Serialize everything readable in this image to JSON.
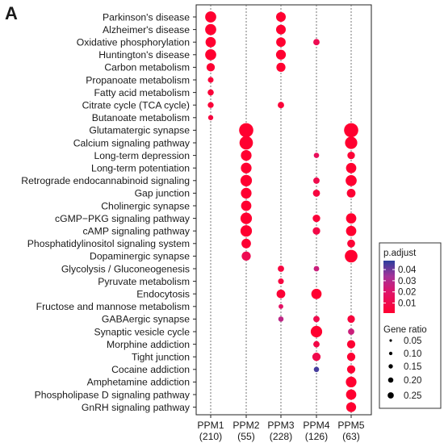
{
  "panel_label": "A",
  "chart_data": {
    "type": "dotplot",
    "groups": [
      "PPM1",
      "PPM2",
      "PPM3",
      "PPM4",
      "PPM5"
    ],
    "group_counts": [
      "(210)",
      "(55)",
      "(228)",
      "(126)",
      "(63)"
    ],
    "terms": [
      "Parkinson's disease",
      "Alzheimer's disease",
      "Oxidative phosphorylation",
      "Huntington's disease",
      "Carbon metabolism",
      "Propanoate metabolism",
      "Fatty acid metabolism",
      "Citrate cycle (TCA cycle)",
      "Butanoate metabolism",
      "Glutamatergic synapse",
      "Calcium signaling pathway",
      "Long-term depression",
      "Long-term potentiation",
      "Retrograde endocannabinoid signaling",
      "Gap junction",
      "Cholinergic synapse",
      "cGMP−PKG signaling pathway",
      "cAMP signaling pathway",
      "Phosphatidylinositol signaling system",
      "Dopaminergic synapse",
      "Glycolysis / Gluconeogenesis",
      "Pyruvate metabolism",
      "Endocytosis",
      "Fructose and mannose metabolism",
      "GABAergic synapse",
      "Synaptic vesicle cycle",
      "Morphine addiction",
      "Tight junction",
      "Cocaine addiction",
      "Amphetamine addiction",
      "Phospholipase D signaling pathway",
      "GnRH signaling pathway"
    ],
    "points": [
      {
        "term": "Parkinson's disease",
        "group": "PPM1",
        "gene_ratio": 0.19,
        "p_adjust": 0.001
      },
      {
        "term": "Parkinson's disease",
        "group": "PPM3",
        "gene_ratio": 0.155,
        "p_adjust": 0.001
      },
      {
        "term": "Alzheimer's disease",
        "group": "PPM1",
        "gene_ratio": 0.19,
        "p_adjust": 0.001
      },
      {
        "term": "Alzheimer's disease",
        "group": "PPM3",
        "gene_ratio": 0.155,
        "p_adjust": 0.001
      },
      {
        "term": "Oxidative phosphorylation",
        "group": "PPM1",
        "gene_ratio": 0.17,
        "p_adjust": 0.001
      },
      {
        "term": "Oxidative phosphorylation",
        "group": "PPM3",
        "gene_ratio": 0.15,
        "p_adjust": 0.001
      },
      {
        "term": "Oxidative phosphorylation",
        "group": "PPM4",
        "gene_ratio": 0.07,
        "p_adjust": 0.012
      },
      {
        "term": "Huntington's disease",
        "group": "PPM1",
        "gene_ratio": 0.19,
        "p_adjust": 0.001
      },
      {
        "term": "Huntington's disease",
        "group": "PPM3",
        "gene_ratio": 0.16,
        "p_adjust": 0.001
      },
      {
        "term": "Carbon metabolism",
        "group": "PPM1",
        "gene_ratio": 0.12,
        "p_adjust": 0.002
      },
      {
        "term": "Carbon metabolism",
        "group": "PPM3",
        "gene_ratio": 0.14,
        "p_adjust": 0.001
      },
      {
        "term": "Propanoate metabolism",
        "group": "PPM1",
        "gene_ratio": 0.055,
        "p_adjust": 0.004
      },
      {
        "term": "Fatty acid metabolism",
        "group": "PPM1",
        "gene_ratio": 0.065,
        "p_adjust": 0.004
      },
      {
        "term": "Citrate cycle (TCA cycle)",
        "group": "PPM1",
        "gene_ratio": 0.06,
        "p_adjust": 0.004
      },
      {
        "term": "Citrate cycle (TCA cycle)",
        "group": "PPM3",
        "gene_ratio": 0.07,
        "p_adjust": 0.004
      },
      {
        "term": "Butanoate metabolism",
        "group": "PPM1",
        "gene_ratio": 0.04,
        "p_adjust": 0.006
      },
      {
        "term": "Glutamatergic synapse",
        "group": "PPM2",
        "gene_ratio": 0.27,
        "p_adjust": 0.001
      },
      {
        "term": "Glutamatergic synapse",
        "group": "PPM5",
        "gene_ratio": 0.27,
        "p_adjust": 0.001
      },
      {
        "term": "Calcium signaling pathway",
        "group": "PPM2",
        "gene_ratio": 0.25,
        "p_adjust": 0.001
      },
      {
        "term": "Calcium signaling pathway",
        "group": "PPM5",
        "gene_ratio": 0.22,
        "p_adjust": 0.001
      },
      {
        "term": "Long-term depression",
        "group": "PPM2",
        "gene_ratio": 0.18,
        "p_adjust": 0.001
      },
      {
        "term": "Long-term depression",
        "group": "PPM4",
        "gene_ratio": 0.045,
        "p_adjust": 0.015
      },
      {
        "term": "Long-term depression",
        "group": "PPM5",
        "gene_ratio": 0.1,
        "p_adjust": 0.003
      },
      {
        "term": "Long-term potentiation",
        "group": "PPM2",
        "gene_ratio": 0.18,
        "p_adjust": 0.001
      },
      {
        "term": "Long-term potentiation",
        "group": "PPM5",
        "gene_ratio": 0.17,
        "p_adjust": 0.001
      },
      {
        "term": "Retrograde endocannabinoid signaling",
        "group": "PPM2",
        "gene_ratio": 0.2,
        "p_adjust": 0.001
      },
      {
        "term": "Retrograde endocannabinoid signaling",
        "group": "PPM4",
        "gene_ratio": 0.07,
        "p_adjust": 0.01
      },
      {
        "term": "Retrograde endocannabinoid signaling",
        "group": "PPM5",
        "gene_ratio": 0.19,
        "p_adjust": 0.001
      },
      {
        "term": "Gap junction",
        "group": "PPM2",
        "gene_ratio": 0.18,
        "p_adjust": 0.001
      },
      {
        "term": "Gap junction",
        "group": "PPM4",
        "gene_ratio": 0.09,
        "p_adjust": 0.006
      },
      {
        "term": "Gap junction",
        "group": "PPM5",
        "gene_ratio": 0.13,
        "p_adjust": 0.002
      },
      {
        "term": "Cholinergic synapse",
        "group": "PPM2",
        "gene_ratio": 0.17,
        "p_adjust": 0.001
      },
      {
        "term": "cGMP−PKG signaling pathway",
        "group": "PPM2",
        "gene_ratio": 0.2,
        "p_adjust": 0.001
      },
      {
        "term": "cGMP−PKG signaling pathway",
        "group": "PPM4",
        "gene_ratio": 0.1,
        "p_adjust": 0.004
      },
      {
        "term": "cGMP−PKG signaling pathway",
        "group": "PPM5",
        "gene_ratio": 0.17,
        "p_adjust": 0.001
      },
      {
        "term": "cAMP signaling pathway",
        "group": "PPM2",
        "gene_ratio": 0.2,
        "p_adjust": 0.001
      },
      {
        "term": "cAMP signaling pathway",
        "group": "PPM4",
        "gene_ratio": 0.1,
        "p_adjust": 0.008
      },
      {
        "term": "cAMP signaling pathway",
        "group": "PPM5",
        "gene_ratio": 0.17,
        "p_adjust": 0.001
      },
      {
        "term": "Phosphatidylinositol signaling system",
        "group": "PPM2",
        "gene_ratio": 0.15,
        "p_adjust": 0.002
      },
      {
        "term": "Phosphatidylinositol signaling system",
        "group": "PPM5",
        "gene_ratio": 0.11,
        "p_adjust": 0.003
      },
      {
        "term": "Dopaminergic synapse",
        "group": "PPM2",
        "gene_ratio": 0.14,
        "p_adjust": 0.012
      },
      {
        "term": "Dopaminergic synapse",
        "group": "PPM5",
        "gene_ratio": 0.23,
        "p_adjust": 0.001
      },
      {
        "term": "Glycolysis / Gluconeogenesis",
        "group": "PPM3",
        "gene_ratio": 0.07,
        "p_adjust": 0.006
      },
      {
        "term": "Glycolysis / Gluconeogenesis",
        "group": "PPM4",
        "gene_ratio": 0.05,
        "p_adjust": 0.025
      },
      {
        "term": "Pyruvate metabolism",
        "group": "PPM3",
        "gene_ratio": 0.055,
        "p_adjust": 0.006
      },
      {
        "term": "Endocytosis",
        "group": "PPM3",
        "gene_ratio": 0.13,
        "p_adjust": 0.003
      },
      {
        "term": "Endocytosis",
        "group": "PPM4",
        "gene_ratio": 0.17,
        "p_adjust": 0.001
      },
      {
        "term": "Fructose and mannose metabolism",
        "group": "PPM3",
        "gene_ratio": 0.03,
        "p_adjust": 0.018
      },
      {
        "term": "GABAergic synapse",
        "group": "PPM3",
        "gene_ratio": 0.045,
        "p_adjust": 0.028
      },
      {
        "term": "GABAergic synapse",
        "group": "PPM4",
        "gene_ratio": 0.07,
        "p_adjust": 0.01
      },
      {
        "term": "GABAergic synapse",
        "group": "PPM5",
        "gene_ratio": 0.1,
        "p_adjust": 0.005
      },
      {
        "term": "Synaptic vesicle cycle",
        "group": "PPM4",
        "gene_ratio": 0.2,
        "p_adjust": 0.001
      },
      {
        "term": "Synaptic vesicle cycle",
        "group": "PPM5",
        "gene_ratio": 0.07,
        "p_adjust": 0.025
      },
      {
        "term": "Morphine addiction",
        "group": "PPM4",
        "gene_ratio": 0.07,
        "p_adjust": 0.008
      },
      {
        "term": "Morphine addiction",
        "group": "PPM5",
        "gene_ratio": 0.12,
        "p_adjust": 0.002
      },
      {
        "term": "Tight junction",
        "group": "PPM4",
        "gene_ratio": 0.12,
        "p_adjust": 0.01
      },
      {
        "term": "Tight junction",
        "group": "PPM5",
        "gene_ratio": 0.12,
        "p_adjust": 0.002
      },
      {
        "term": "Cocaine addiction",
        "group": "PPM4",
        "gene_ratio": 0.045,
        "p_adjust": 0.045
      },
      {
        "term": "Cocaine addiction",
        "group": "PPM5",
        "gene_ratio": 0.12,
        "p_adjust": 0.002
      },
      {
        "term": "Amphetamine addiction",
        "group": "PPM5",
        "gene_ratio": 0.18,
        "p_adjust": 0.001
      },
      {
        "term": "Phospholipase D signaling pathway",
        "group": "PPM5",
        "gene_ratio": 0.17,
        "p_adjust": 0.001
      },
      {
        "term": "GnRH signaling pathway",
        "group": "PPM5",
        "gene_ratio": 0.16,
        "p_adjust": 0.001
      }
    ],
    "color_legend": {
      "title": "p.adjust",
      "ticks": [
        0.04,
        0.03,
        0.02,
        0.01
      ],
      "range": [
        0.001,
        0.048
      ],
      "low_color": "#ff0030",
      "high_color": "#2b3f9e"
    },
    "size_legend": {
      "title": "Gene ratio",
      "values": [
        0.05,
        0.1,
        0.15,
        0.2,
        0.25
      ],
      "labels": [
        "0.05",
        "0.10",
        "0.15",
        "0.20",
        "0.25"
      ]
    },
    "grid": "vertical-dashed",
    "legend_position": "right"
  }
}
